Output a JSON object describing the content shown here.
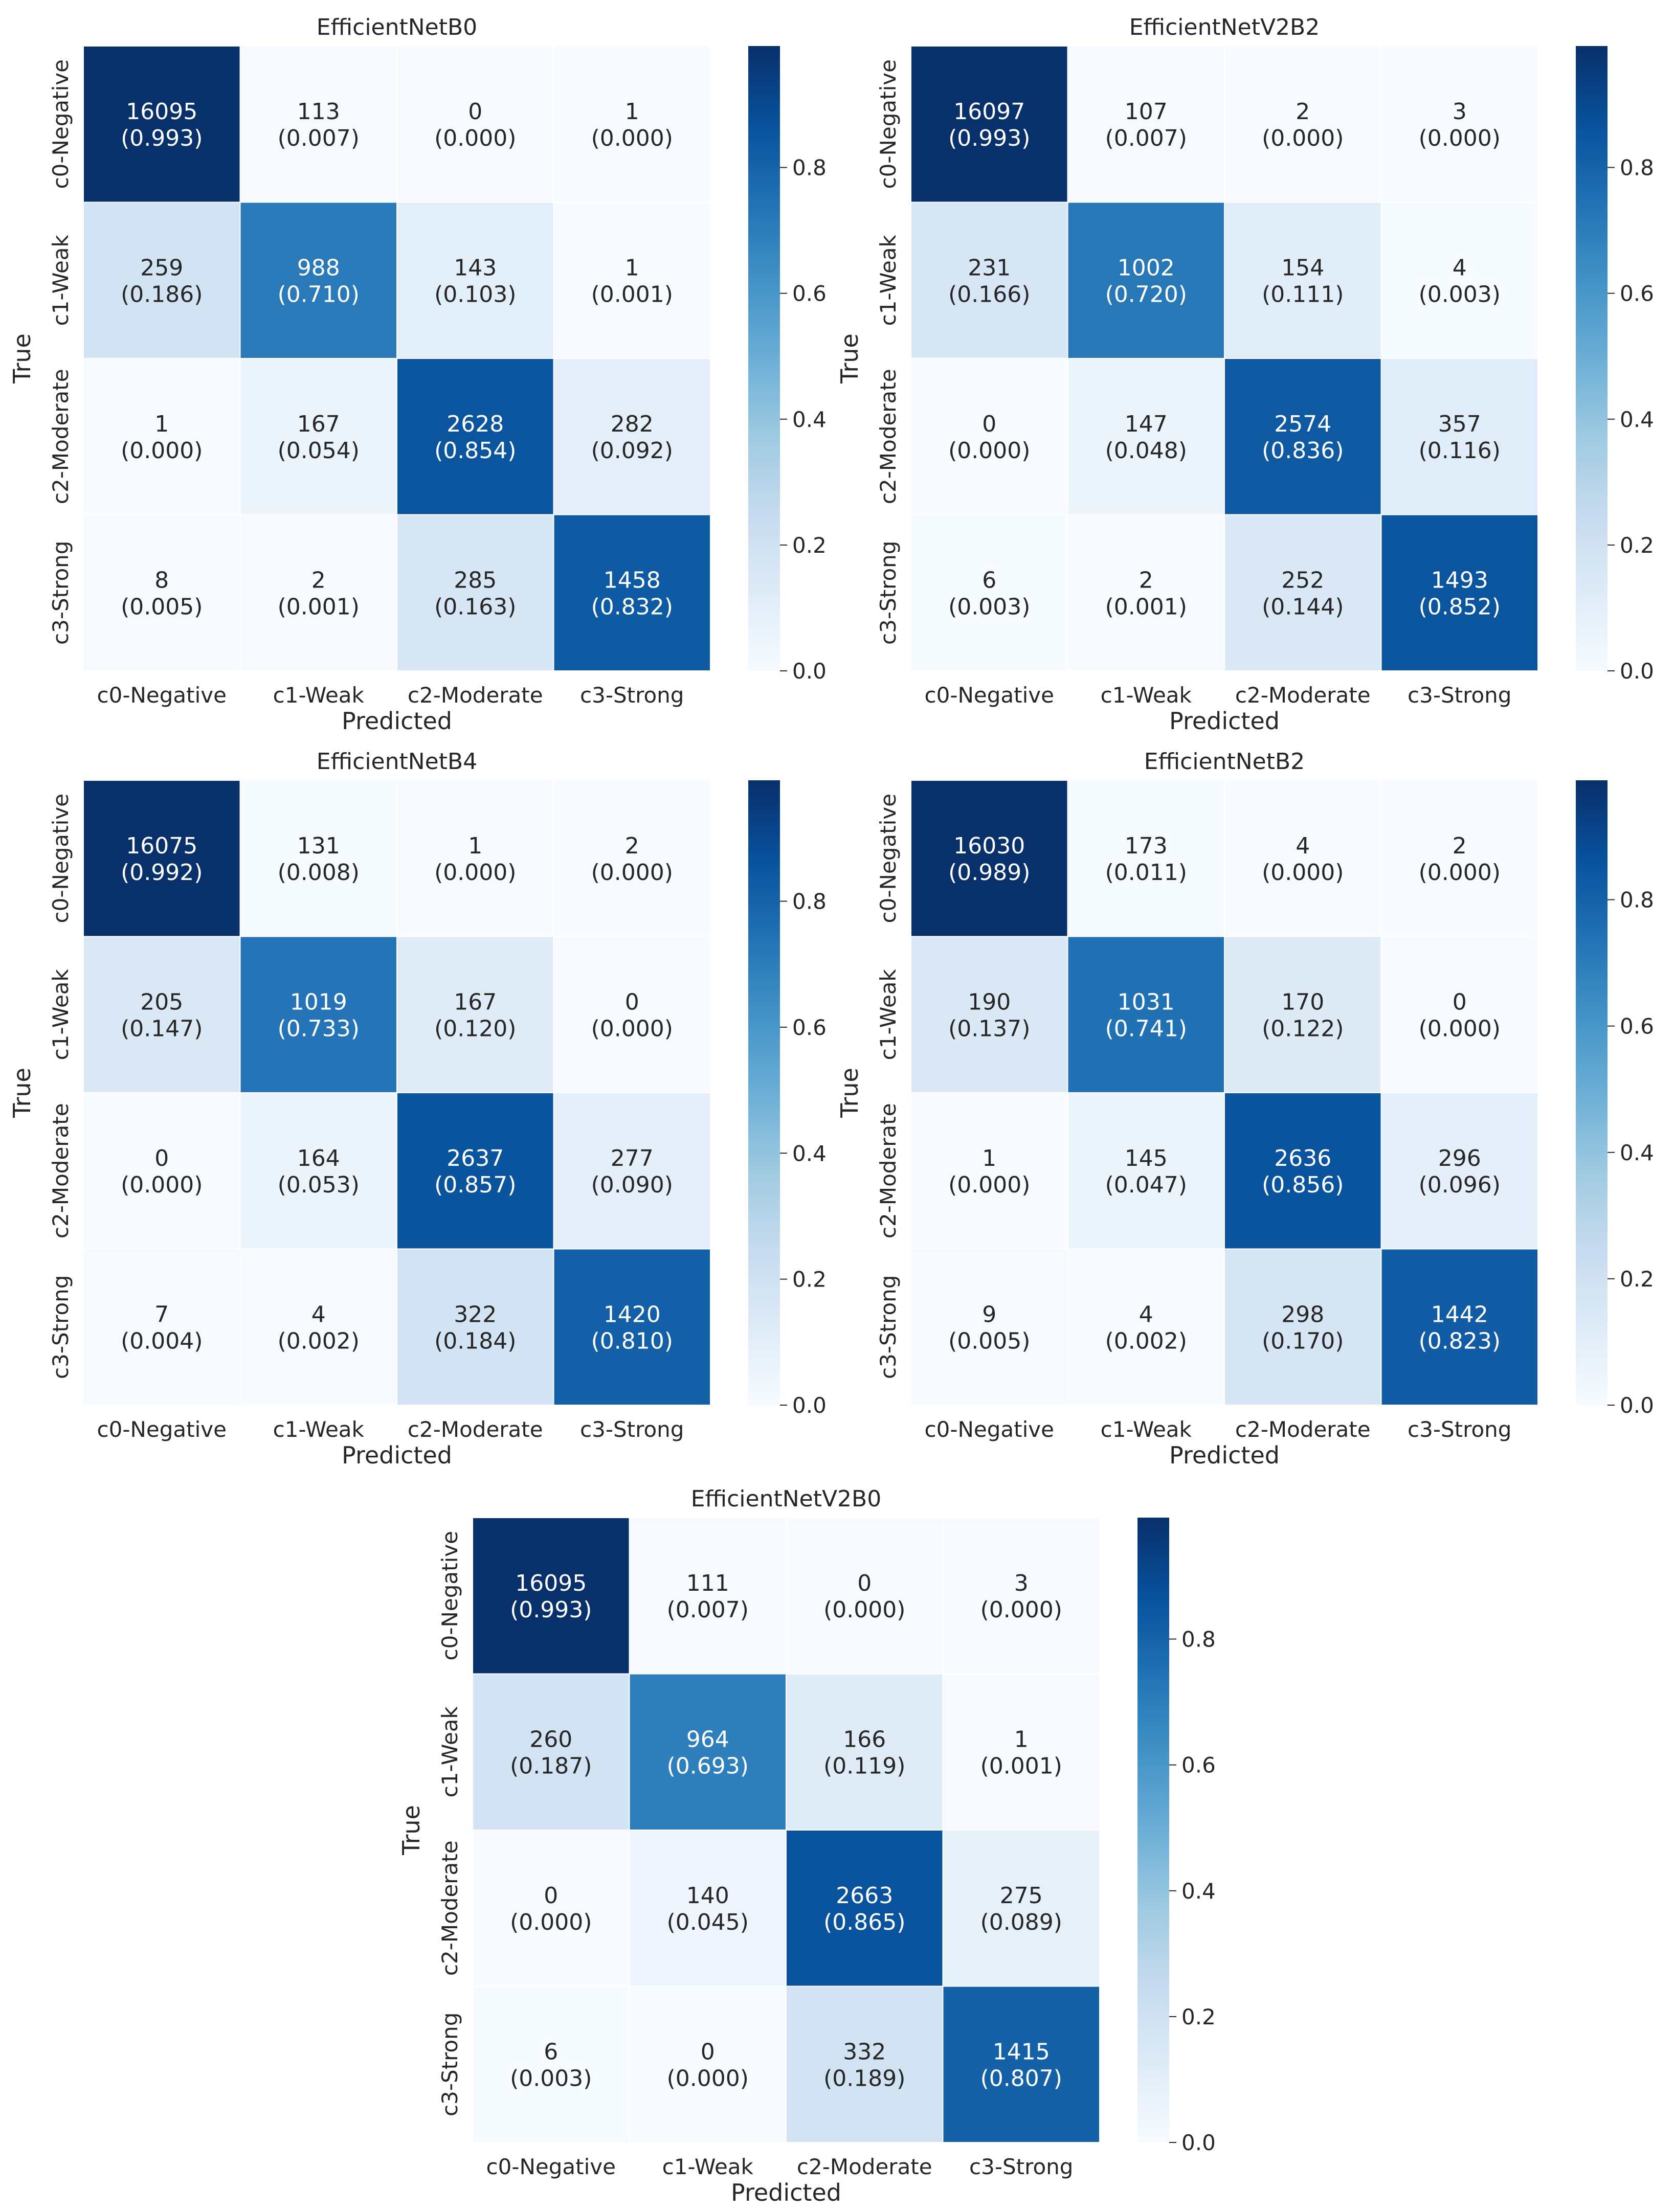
{
  "figure": {
    "colormap": [
      "#f7fbff",
      "#deebf7",
      "#c6dbef",
      "#9ecae1",
      "#6baed6",
      "#4292c6",
      "#2171b5",
      "#08519c",
      "#08306b"
    ],
    "text_dark": "#262626",
    "text_light": "#ffffff"
  },
  "chart_data": [
    {
      "type": "heatmap",
      "title": "EfficientNetB0",
      "xlabel": "Predicted",
      "ylabel": "True",
      "x_categories": [
        "c0-Negative",
        "c1-Weak",
        "c2-Moderate",
        "c3-Strong"
      ],
      "y_categories": [
        "c0-Negative",
        "c1-Weak",
        "c2-Moderate",
        "c3-Strong"
      ],
      "counts": [
        [
          16095,
          113,
          0,
          1
        ],
        [
          259,
          988,
          143,
          1
        ],
        [
          1,
          167,
          2628,
          282
        ],
        [
          8,
          2,
          285,
          1458
        ]
      ],
      "fractions": [
        [
          "0.993",
          "0.007",
          "0.000",
          "0.000"
        ],
        [
          "0.186",
          "0.710",
          "0.103",
          "0.001"
        ],
        [
          "0.000",
          "0.054",
          "0.854",
          "0.092"
        ],
        [
          "0.005",
          "0.001",
          "0.163",
          "0.832"
        ]
      ],
      "colorbar": {
        "range": [
          0,
          0.993
        ],
        "ticks": [
          "0.0",
          "0.2",
          "0.4",
          "0.6",
          "0.8"
        ]
      }
    },
    {
      "type": "heatmap",
      "title": "EfficientNetV2B2",
      "xlabel": "Predicted",
      "ylabel": "True",
      "x_categories": [
        "c0-Negative",
        "c1-Weak",
        "c2-Moderate",
        "c3-Strong"
      ],
      "y_categories": [
        "c0-Negative",
        "c1-Weak",
        "c2-Moderate",
        "c3-Strong"
      ],
      "counts": [
        [
          16097,
          107,
          2,
          3
        ],
        [
          231,
          1002,
          154,
          4
        ],
        [
          0,
          147,
          2574,
          357
        ],
        [
          6,
          2,
          252,
          1493
        ]
      ],
      "fractions": [
        [
          "0.993",
          "0.007",
          "0.000",
          "0.000"
        ],
        [
          "0.166",
          "0.720",
          "0.111",
          "0.003"
        ],
        [
          "0.000",
          "0.048",
          "0.836",
          "0.116"
        ],
        [
          "0.003",
          "0.001",
          "0.144",
          "0.852"
        ]
      ],
      "colorbar": {
        "range": [
          0,
          0.993
        ],
        "ticks": [
          "0.0",
          "0.2",
          "0.4",
          "0.6",
          "0.8"
        ]
      }
    },
    {
      "type": "heatmap",
      "title": "EfficientNetB4",
      "xlabel": "Predicted",
      "ylabel": "True",
      "x_categories": [
        "c0-Negative",
        "c1-Weak",
        "c2-Moderate",
        "c3-Strong"
      ],
      "y_categories": [
        "c0-Negative",
        "c1-Weak",
        "c2-Moderate",
        "c3-Strong"
      ],
      "counts": [
        [
          16075,
          131,
          1,
          2
        ],
        [
          205,
          1019,
          167,
          0
        ],
        [
          0,
          164,
          2637,
          277
        ],
        [
          7,
          4,
          322,
          1420
        ]
      ],
      "fractions": [
        [
          "0.992",
          "0.008",
          "0.000",
          "0.000"
        ],
        [
          "0.147",
          "0.733",
          "0.120",
          "0.000"
        ],
        [
          "0.000",
          "0.053",
          "0.857",
          "0.090"
        ],
        [
          "0.004",
          "0.002",
          "0.184",
          "0.810"
        ]
      ],
      "colorbar": {
        "range": [
          0,
          0.992
        ],
        "ticks": [
          "0.0",
          "0.2",
          "0.4",
          "0.6",
          "0.8"
        ]
      }
    },
    {
      "type": "heatmap",
      "title": "EfficientNetB2",
      "xlabel": "Predicted",
      "ylabel": "True",
      "x_categories": [
        "c0-Negative",
        "c1-Weak",
        "c2-Moderate",
        "c3-Strong"
      ],
      "y_categories": [
        "c0-Negative",
        "c1-Weak",
        "c2-Moderate",
        "c3-Strong"
      ],
      "counts": [
        [
          16030,
          173,
          4,
          2
        ],
        [
          190,
          1031,
          170,
          0
        ],
        [
          1,
          145,
          2636,
          296
        ],
        [
          9,
          4,
          298,
          1442
        ]
      ],
      "fractions": [
        [
          "0.989",
          "0.011",
          "0.000",
          "0.000"
        ],
        [
          "0.137",
          "0.741",
          "0.122",
          "0.000"
        ],
        [
          "0.000",
          "0.047",
          "0.856",
          "0.096"
        ],
        [
          "0.005",
          "0.002",
          "0.170",
          "0.823"
        ]
      ],
      "colorbar": {
        "range": [
          0,
          0.989
        ],
        "ticks": [
          "0.0",
          "0.2",
          "0.4",
          "0.6",
          "0.8"
        ]
      }
    },
    {
      "type": "heatmap",
      "title": "EfficientNetV2B0",
      "xlabel": "Predicted",
      "ylabel": "True",
      "x_categories": [
        "c0-Negative",
        "c1-Weak",
        "c2-Moderate",
        "c3-Strong"
      ],
      "y_categories": [
        "c0-Negative",
        "c1-Weak",
        "c2-Moderate",
        "c3-Strong"
      ],
      "counts": [
        [
          16095,
          111,
          0,
          3
        ],
        [
          260,
          964,
          166,
          1
        ],
        [
          0,
          140,
          2663,
          275
        ],
        [
          6,
          0,
          332,
          1415
        ]
      ],
      "fractions": [
        [
          "0.993",
          "0.007",
          "0.000",
          "0.000"
        ],
        [
          "0.187",
          "0.693",
          "0.119",
          "0.001"
        ],
        [
          "0.000",
          "0.045",
          "0.865",
          "0.089"
        ],
        [
          "0.003",
          "0.000",
          "0.189",
          "0.807"
        ]
      ],
      "colorbar": {
        "range": [
          0,
          0.993
        ],
        "ticks": [
          "0.0",
          "0.2",
          "0.4",
          "0.6",
          "0.8"
        ]
      }
    }
  ]
}
